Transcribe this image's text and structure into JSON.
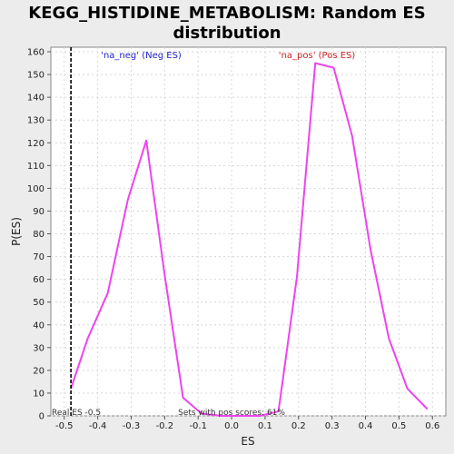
{
  "chart_data": {
    "type": "line",
    "title_lines": [
      "KEGG_HISTIDINE_METABOLISM: Random ES",
      "distribution"
    ],
    "xlabel": "ES",
    "ylabel": "P(ES)",
    "xlim": [
      -0.54,
      0.64
    ],
    "ylim": [
      0,
      162
    ],
    "x_ticks": [
      -0.5,
      -0.4,
      -0.3,
      -0.2,
      -0.1,
      0.0,
      0.1,
      0.2,
      0.3,
      0.4,
      0.5,
      0.6
    ],
    "x_tick_labels": [
      "-0.5",
      "-0.4",
      "-0.3",
      "-0.2",
      "-0.1",
      "0.0",
      "0.1",
      "0.2",
      "0.3",
      "0.4",
      "0.5",
      "0.6"
    ],
    "y_ticks": [
      0,
      10,
      20,
      30,
      40,
      50,
      60,
      70,
      80,
      90,
      100,
      110,
      120,
      130,
      140,
      150,
      160
    ],
    "y_tick_labels": [
      "0",
      "10",
      "20",
      "30",
      "40",
      "50",
      "60",
      "70",
      "80",
      "90",
      "100",
      "110",
      "120",
      "130",
      "140",
      "150",
      "160"
    ],
    "grid": true,
    "series": [
      {
        "color": "#ee44ee",
        "points": [
          [
            -0.48,
            12
          ],
          [
            -0.43,
            34
          ],
          [
            -0.37,
            54
          ],
          [
            -0.31,
            95
          ],
          [
            -0.255,
            121
          ],
          [
            -0.2,
            62
          ],
          [
            -0.145,
            8
          ],
          [
            -0.09,
            1
          ],
          [
            -0.03,
            0
          ],
          [
            0.03,
            0
          ],
          [
            0.085,
            0
          ],
          [
            0.14,
            2
          ],
          [
            0.195,
            61
          ],
          [
            0.25,
            155
          ],
          [
            0.305,
            153
          ],
          [
            0.36,
            123
          ],
          [
            0.415,
            73
          ],
          [
            0.47,
            34
          ],
          [
            0.525,
            12
          ],
          [
            0.585,
            3
          ]
        ]
      }
    ],
    "real_es": {
      "value": -0.48,
      "label": "Real ES -0.5",
      "line_color": "#000000"
    },
    "legend": [
      {
        "text": "'na_neg' (Neg ES)",
        "color": "#2222cc",
        "x": -0.27
      },
      {
        "text": "'na_pos' (Pos ES)",
        "color": "#cc2222",
        "x": 0.255
      }
    ],
    "annotation": "Sets with pos scores: 61%"
  }
}
